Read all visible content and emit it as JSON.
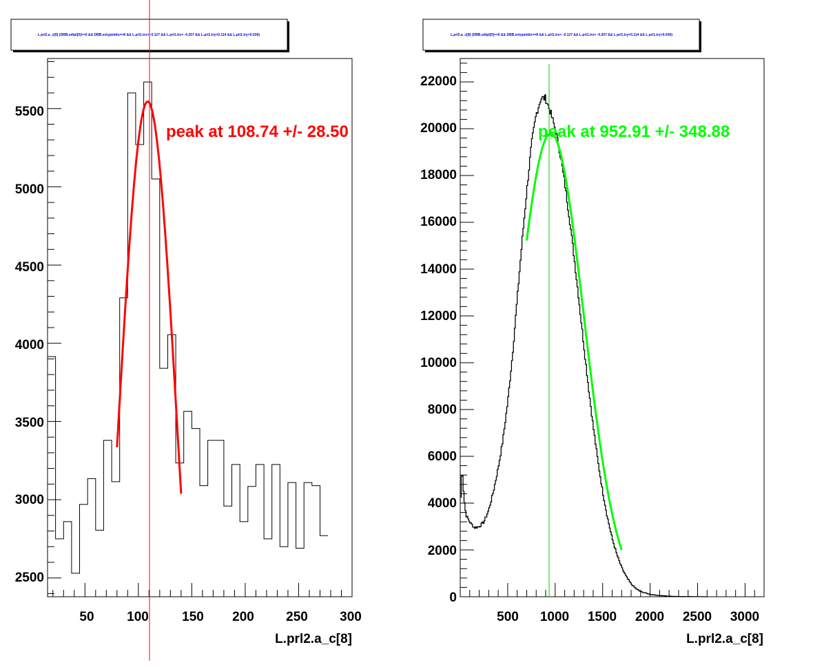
{
  "panels": [
    {
      "title": "L.prl2.a_c[8] {DBB.edtpl[0]==0 && DBB.evtypebits==8 &&  L.prl1.trx> -0.127 && L.prl1.trx> -0.207 && L.prl1.try<0.114 && L.prl1.try>0.036}",
      "xlabel": "L.prl2.a_c[8]",
      "xticks": [
        "50",
        "100",
        "150",
        "200",
        "250",
        "300"
      ],
      "yticks": [
        "2500",
        "3000",
        "3500",
        "4000",
        "4500",
        "5000",
        "5500"
      ],
      "peak_label": "peak at 108.74 +/- 28.50",
      "fit_color": "#ff0000"
    },
    {
      "title": "L.prl2.a_c[8] {DBB.edtpl[0]==0 && DBB.evtypebits==8 &&  L.prl1.trx< -0.127 && L.prl1.trx> -0.207 && L.prl1.try<0.114 && L.prl1.try>0.036}",
      "xlabel": "L.prl2.a_c[8]",
      "xticks": [
        "500",
        "1000",
        "1500",
        "2000",
        "2500",
        "3000"
      ],
      "yticks": [
        "0",
        "2000",
        "4000",
        "6000",
        "8000",
        "10000",
        "12000",
        "14000",
        "16000",
        "18000",
        "20000",
        "22000"
      ],
      "peak_label": "peak at 952.91 +/- 348.88",
      "fit_color": "#00ff00"
    }
  ],
  "chart_data": [
    {
      "type": "histogram",
      "title": "L.prl2.a_c[8] {DBB.edtpl[0]==0 && DBB.evtypebits==8 &&  L.prl1.trx> -0.127 && L.prl1.trx> -0.207 && L.prl1.try<0.114 && L.prl1.try>0.036}",
      "xlabel": "L.prl2.a_c[8]",
      "ylabel": "",
      "xlim": [
        15,
        300
      ],
      "ylim": [
        2380,
        5820
      ],
      "bin_width": 7.5,
      "bin_start": 15,
      "values": [
        3915,
        2750,
        2860,
        2530,
        2970,
        3135,
        2805,
        3380,
        3115,
        4290,
        5600,
        5270,
        5670,
        5050,
        3840,
        4055,
        3235,
        3565,
        3455,
        3090,
        3380,
        3380,
        2960,
        3225,
        2860,
        3085,
        3225,
        2750,
        3225,
        2700,
        3110,
        2690,
        3110,
        3090,
        2770
      ],
      "fit": {
        "function": "gaus",
        "mean": 108.74,
        "sigma": 28.5,
        "constant": 5545,
        "range": [
          80,
          140
        ],
        "color": "#ff0000"
      },
      "marker_line_x": 108.74,
      "annotation": "peak at 108.74 +/- 28.50",
      "grid": false,
      "legend": "none"
    },
    {
      "type": "histogram",
      "title": "L.prl2.a_c[8] {DBB.edtpl[0]==0 && DBB.evtypebits==8 &&  L.prl1.trx< -0.127 && L.prl1.trx> -0.207 && L.prl1.try<0.114 && L.prl1.try>0.036}",
      "xlabel": "L.prl2.a_c[8]",
      "ylabel": "",
      "xlim": [
        0,
        3200
      ],
      "ylim": [
        0,
        23000
      ],
      "bin_width": 10,
      "curve_points": [
        [
          0,
          3800
        ],
        [
          20,
          5600
        ],
        [
          40,
          4200
        ],
        [
          60,
          3500
        ],
        [
          100,
          3200
        ],
        [
          150,
          2950
        ],
        [
          200,
          3000
        ],
        [
          250,
          3200
        ],
        [
          300,
          3700
        ],
        [
          350,
          4500
        ],
        [
          400,
          5500
        ],
        [
          450,
          6700
        ],
        [
          500,
          8300
        ],
        [
          550,
          10300
        ],
        [
          600,
          12700
        ],
        [
          650,
          15100
        ],
        [
          700,
          17300
        ],
        [
          750,
          19300
        ],
        [
          800,
          20600
        ],
        [
          850,
          21300
        ],
        [
          900,
          21300
        ],
        [
          950,
          20700
        ],
        [
          1000,
          20000
        ],
        [
          1050,
          19000
        ],
        [
          1100,
          17700
        ],
        [
          1150,
          16200
        ],
        [
          1200,
          14500
        ],
        [
          1250,
          12700
        ],
        [
          1300,
          10800
        ],
        [
          1350,
          9000
        ],
        [
          1400,
          7300
        ],
        [
          1450,
          5800
        ],
        [
          1500,
          4500
        ],
        [
          1550,
          3400
        ],
        [
          1600,
          2500
        ],
        [
          1650,
          1800
        ],
        [
          1700,
          1250
        ],
        [
          1750,
          850
        ],
        [
          1800,
          550
        ],
        [
          1850,
          350
        ],
        [
          1900,
          220
        ],
        [
          2000,
          100
        ],
        [
          2100,
          50
        ],
        [
          2200,
          25
        ],
        [
          2300,
          12
        ],
        [
          2450,
          5
        ],
        [
          2600,
          0
        ]
      ],
      "fit": {
        "function": "gaus",
        "mean": 952.91,
        "sigma": 348.88,
        "constant": 19800,
        "range": [
          700,
          1700
        ],
        "color": "#00ff00"
      },
      "marker_line_x": 952.91,
      "annotation": "peak at 952.91 +/- 348.88",
      "grid": false,
      "legend": "none"
    }
  ]
}
